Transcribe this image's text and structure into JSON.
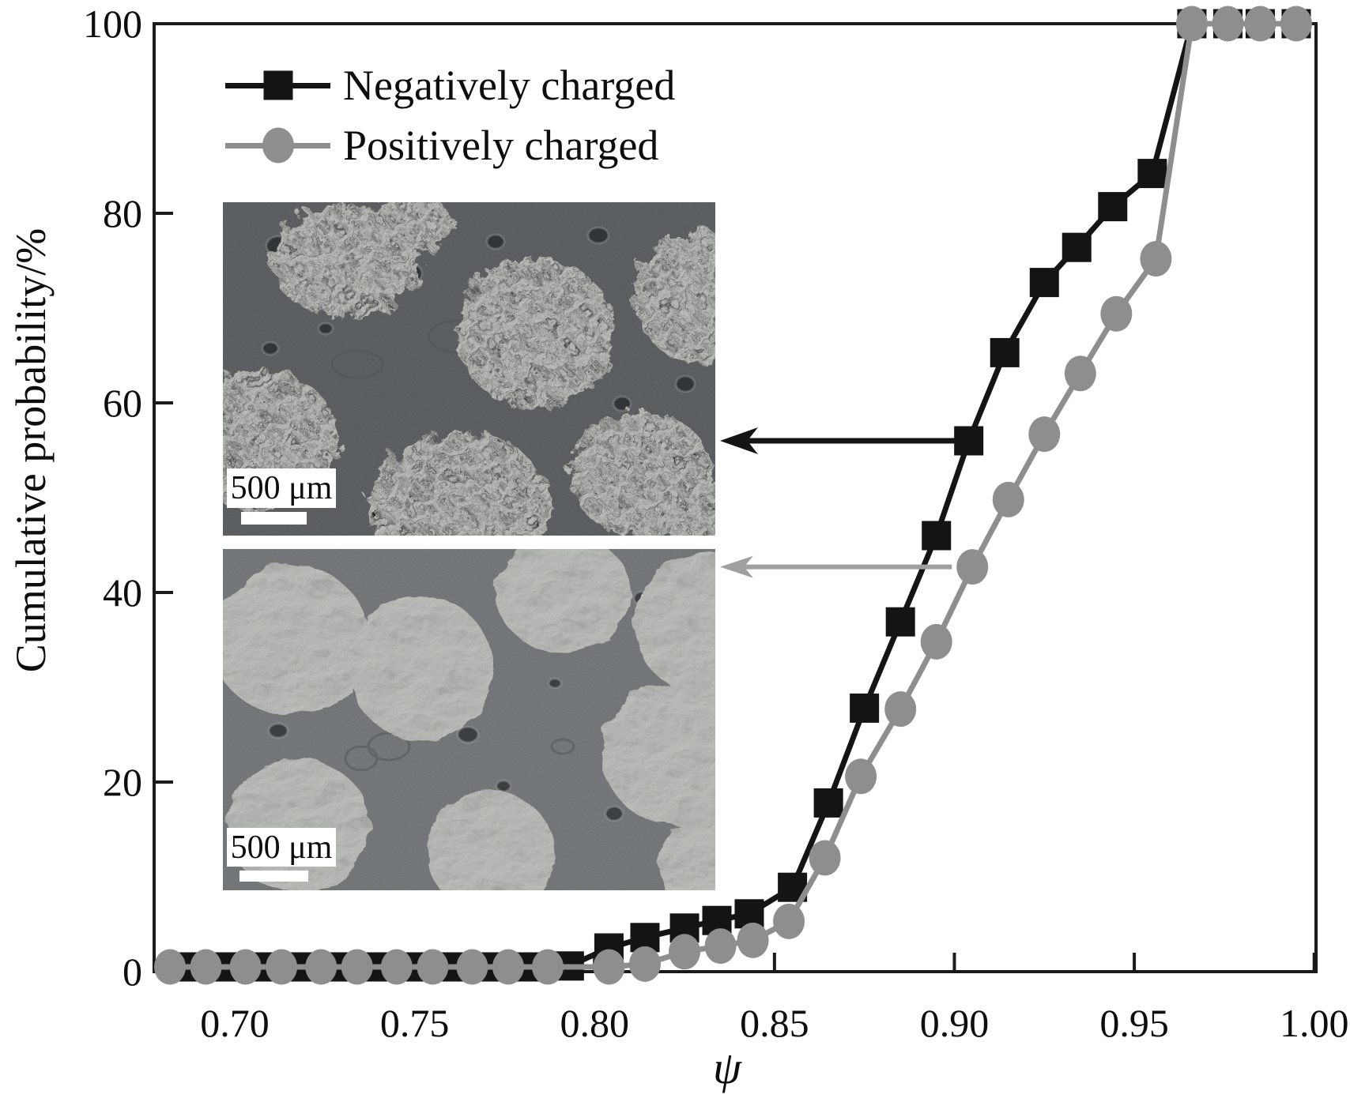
{
  "axes": {
    "x_label": "ψ",
    "y_label": "Cumulative probability/%",
    "x_ticks": [
      "0.70",
      "0.75",
      "0.80",
      "0.85",
      "0.90",
      "0.95",
      "1.00"
    ],
    "x_tick_values": [
      0.7,
      0.75,
      0.8,
      0.85,
      0.9,
      0.95,
      1.0
    ],
    "y_ticks": [
      "0",
      "20",
      "40",
      "60",
      "80",
      "100"
    ],
    "y_tick_values": [
      0,
      20,
      40,
      60,
      80,
      100
    ],
    "frame_color": "#1a1a1a"
  },
  "legend": [
    {
      "label": "Negatively charged",
      "color": "#141414",
      "marker": "square"
    },
    {
      "label": "Positively charged",
      "color": "#8e8e8e",
      "marker": "circle"
    }
  ],
  "chart_data": {
    "type": "line",
    "title": "",
    "xlabel": "ψ",
    "ylabel": "Cumulative probability/%",
    "xlim": [
      0.6776,
      1.0005
    ],
    "ylim": [
      0,
      100
    ],
    "grid": false,
    "legend_position": "top-left",
    "series": [
      {
        "name": "Negatively charged",
        "marker": "square",
        "color": "#141414",
        "x": [
          0.687,
          0.698,
          0.708,
          0.719,
          0.729,
          0.74,
          0.75,
          0.761,
          0.771,
          0.782,
          0.793,
          0.804,
          0.814,
          0.825,
          0.834,
          0.843,
          0.855,
          0.865,
          0.875,
          0.885,
          0.895,
          0.904,
          0.914,
          0.925,
          0.934,
          0.944,
          0.955,
          0.966,
          0.976,
          0.985,
          0.995
        ],
        "values": [
          0.5,
          0.5,
          0.5,
          0.5,
          0.5,
          0.5,
          0.5,
          0.5,
          0.5,
          0.5,
          0.6,
          2.5,
          3.6,
          4.6,
          5.4,
          6.1,
          8.9,
          17.8,
          27.8,
          36.9,
          46,
          56,
          65.3,
          72.7,
          76.4,
          80.7,
          84.2,
          100,
          100,
          100,
          100
        ]
      },
      {
        "name": "Positively charged",
        "marker": "circle",
        "color": "#8e8e8e",
        "x": [
          0.682,
          0.692,
          0.703,
          0.713,
          0.724,
          0.734,
          0.745,
          0.755,
          0.766,
          0.776,
          0.787,
          0.804,
          0.814,
          0.825,
          0.835,
          0.844,
          0.854,
          0.864,
          0.874,
          0.885,
          0.895,
          0.905,
          0.915,
          0.925,
          0.935,
          0.945,
          0.956,
          0.966,
          0.976,
          0.985,
          0.995
        ],
        "values": [
          0.5,
          0.5,
          0.5,
          0.5,
          0.5,
          0.5,
          0.5,
          0.5,
          0.5,
          0.5,
          0.5,
          0.5,
          0.8,
          2.1,
          2.7,
          3.3,
          5.3,
          12,
          20.6,
          27.7,
          34.8,
          42.7,
          49.8,
          56.7,
          63.1,
          69.4,
          75.2,
          100,
          100,
          100,
          100
        ]
      }
    ]
  },
  "insets": [
    {
      "name": "negatively-charged-sem",
      "scale_label": "500 μm"
    },
    {
      "name": "positively-charged-sem",
      "scale_label": "500 μm"
    }
  ],
  "arrows": [
    {
      "name": "arrow-to-negatively-charged-inset",
      "color": "#141414",
      "anchor_x": 0.904,
      "anchor_y": 56,
      "tail_offset": 18,
      "target": "inset_top",
      "width": 7,
      "head_w": 48,
      "head_h": 17
    },
    {
      "name": "arrow-to-positively-charged-inset",
      "color": "#a0a0a0",
      "anchor_x": 0.905,
      "anchor_y": 42.7,
      "tail_offset": 26,
      "target": "inset_bottom",
      "width": 6,
      "head_w": 42,
      "head_h": 14
    }
  ]
}
